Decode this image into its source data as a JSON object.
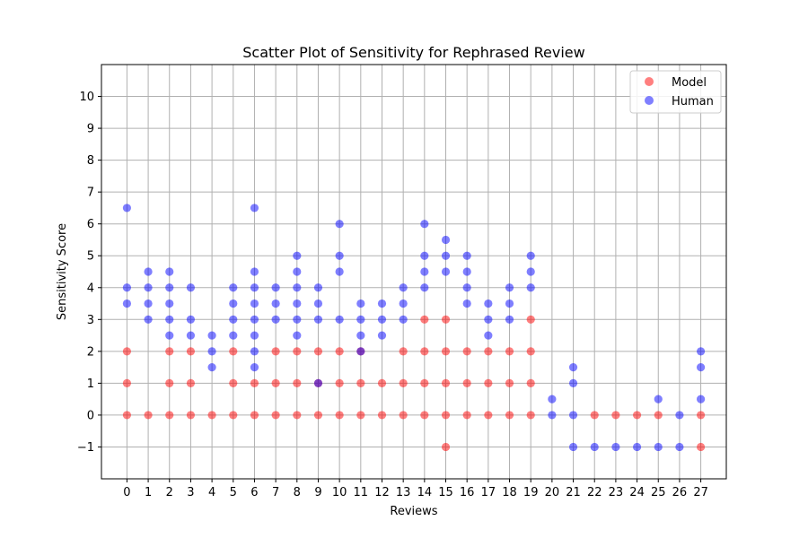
{
  "chart_data": {
    "type": "scatter",
    "title": "Scatter Plot of Sensitivity for Rephrased Review",
    "xlabel": "Reviews",
    "ylabel": "Sensitivity Score",
    "xlim": [
      -1.2,
      28.2
    ],
    "ylim": [
      -2,
      11
    ],
    "xticks": [
      0,
      1,
      2,
      3,
      4,
      5,
      6,
      7,
      8,
      9,
      10,
      11,
      12,
      13,
      14,
      15,
      16,
      17,
      18,
      19,
      20,
      21,
      22,
      23,
      24,
      25,
      26,
      27
    ],
    "yticks": [
      -1,
      0,
      1,
      2,
      3,
      4,
      5,
      6,
      7,
      8,
      9,
      10
    ],
    "ytick_labels": [
      "−1",
      "0",
      "1",
      "2",
      "3",
      "4",
      "5",
      "6",
      "7",
      "8",
      "9",
      "10"
    ],
    "grid": true,
    "legend_position": "top-right",
    "series": [
      {
        "name": "Model",
        "color": "#ff0000",
        "points": [
          [
            0,
            0
          ],
          [
            0,
            1
          ],
          [
            0,
            2
          ],
          [
            1,
            0
          ],
          [
            2,
            0
          ],
          [
            2,
            1
          ],
          [
            2,
            2
          ],
          [
            3,
            0
          ],
          [
            3,
            1
          ],
          [
            3,
            2
          ],
          [
            4,
            0
          ],
          [
            5,
            0
          ],
          [
            5,
            1
          ],
          [
            5,
            2
          ],
          [
            6,
            0
          ],
          [
            6,
            1
          ],
          [
            7,
            0
          ],
          [
            7,
            1
          ],
          [
            7,
            2
          ],
          [
            8,
            0
          ],
          [
            8,
            1
          ],
          [
            8,
            2
          ],
          [
            9,
            0
          ],
          [
            9,
            1
          ],
          [
            9,
            2
          ],
          [
            10,
            0
          ],
          [
            10,
            1
          ],
          [
            10,
            2
          ],
          [
            11,
            0
          ],
          [
            11,
            1
          ],
          [
            11,
            2
          ],
          [
            12,
            0
          ],
          [
            12,
            1
          ],
          [
            13,
            0
          ],
          [
            13,
            1
          ],
          [
            13,
            2
          ],
          [
            14,
            0
          ],
          [
            14,
            1
          ],
          [
            14,
            2
          ],
          [
            14,
            3
          ],
          [
            15,
            -1
          ],
          [
            15,
            0
          ],
          [
            15,
            1
          ],
          [
            15,
            2
          ],
          [
            15,
            3
          ],
          [
            16,
            0
          ],
          [
            16,
            1
          ],
          [
            16,
            2
          ],
          [
            17,
            0
          ],
          [
            17,
            1
          ],
          [
            17,
            2
          ],
          [
            18,
            0
          ],
          [
            18,
            1
          ],
          [
            18,
            2
          ],
          [
            19,
            0
          ],
          [
            19,
            1
          ],
          [
            19,
            2
          ],
          [
            19,
            3
          ],
          [
            22,
            0
          ],
          [
            23,
            0
          ],
          [
            24,
            0
          ],
          [
            25,
            0
          ],
          [
            27,
            -1
          ],
          [
            27,
            0
          ]
        ]
      },
      {
        "name": "Human",
        "color": "#0000ff",
        "points": [
          [
            0,
            3.5
          ],
          [
            0,
            4
          ],
          [
            0,
            6.5
          ],
          [
            1,
            3
          ],
          [
            1,
            3.5
          ],
          [
            1,
            4
          ],
          [
            1,
            4.5
          ],
          [
            2,
            2.5
          ],
          [
            2,
            3
          ],
          [
            2,
            3.5
          ],
          [
            2,
            4
          ],
          [
            2,
            4.5
          ],
          [
            3,
            2.5
          ],
          [
            3,
            3
          ],
          [
            3,
            4
          ],
          [
            4,
            1.5
          ],
          [
            4,
            2
          ],
          [
            4,
            2.5
          ],
          [
            5,
            2.5
          ],
          [
            5,
            3
          ],
          [
            5,
            3.5
          ],
          [
            5,
            4
          ],
          [
            6,
            1.5
          ],
          [
            6,
            2
          ],
          [
            6,
            2.5
          ],
          [
            6,
            3
          ],
          [
            6,
            3.5
          ],
          [
            6,
            4
          ],
          [
            6,
            4.5
          ],
          [
            6,
            6.5
          ],
          [
            7,
            3
          ],
          [
            7,
            3.5
          ],
          [
            7,
            4
          ],
          [
            8,
            2.5
          ],
          [
            8,
            3
          ],
          [
            8,
            3.5
          ],
          [
            8,
            4
          ],
          [
            8,
            4.5
          ],
          [
            8,
            5
          ],
          [
            9,
            1
          ],
          [
            9,
            3
          ],
          [
            9,
            3.5
          ],
          [
            9,
            4
          ],
          [
            10,
            3
          ],
          [
            10,
            4.5
          ],
          [
            10,
            5
          ],
          [
            10,
            6
          ],
          [
            11,
            2
          ],
          [
            11,
            2.5
          ],
          [
            11,
            3
          ],
          [
            11,
            3.5
          ],
          [
            12,
            2.5
          ],
          [
            12,
            3
          ],
          [
            12,
            3.5
          ],
          [
            13,
            3
          ],
          [
            13,
            3.5
          ],
          [
            13,
            4
          ],
          [
            14,
            4
          ],
          [
            14,
            4.5
          ],
          [
            14,
            5
          ],
          [
            14,
            6
          ],
          [
            15,
            4.5
          ],
          [
            15,
            5
          ],
          [
            15,
            5.5
          ],
          [
            16,
            3.5
          ],
          [
            16,
            4
          ],
          [
            16,
            4.5
          ],
          [
            16,
            5
          ],
          [
            17,
            2.5
          ],
          [
            17,
            3
          ],
          [
            17,
            3.5
          ],
          [
            18,
            3
          ],
          [
            18,
            3.5
          ],
          [
            18,
            4
          ],
          [
            19,
            4
          ],
          [
            19,
            4.5
          ],
          [
            19,
            5
          ],
          [
            20,
            0
          ],
          [
            20,
            0.5
          ],
          [
            21,
            -1
          ],
          [
            21,
            0
          ],
          [
            21,
            1
          ],
          [
            21,
            1.5
          ],
          [
            22,
            -1
          ],
          [
            23,
            -1
          ],
          [
            24,
            -1
          ],
          [
            25,
            -1
          ],
          [
            25,
            0.5
          ],
          [
            26,
            -1
          ],
          [
            26,
            0
          ],
          [
            27,
            0.5
          ],
          [
            27,
            1.5
          ],
          [
            27,
            2
          ]
        ]
      }
    ]
  }
}
